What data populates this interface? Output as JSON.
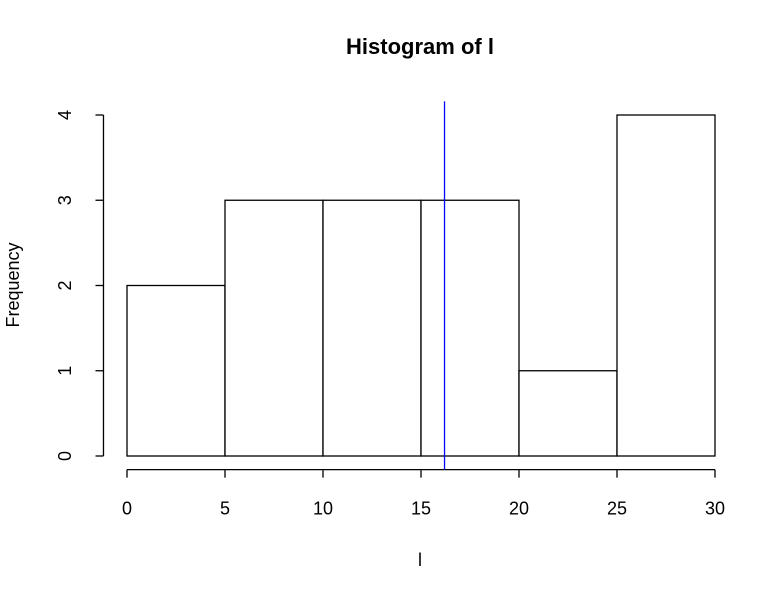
{
  "chart_data": {
    "type": "histogram",
    "title": "Histogram of l",
    "xlabel": "l",
    "ylabel": "Frequency",
    "bins": [
      0,
      5,
      10,
      15,
      20,
      25,
      30
    ],
    "values": [
      2,
      3,
      3,
      3,
      1,
      4
    ],
    "color": "#ffffff",
    "edgecolor": "#000000",
    "xlim": [
      0,
      30
    ],
    "xticks": [
      0,
      5,
      10,
      15,
      20,
      25,
      30
    ],
    "ylim": [
      0,
      4
    ],
    "yticks": [
      0,
      1,
      2,
      3,
      4
    ],
    "vline": {
      "value": 16.2,
      "color": "#0000ff"
    }
  }
}
